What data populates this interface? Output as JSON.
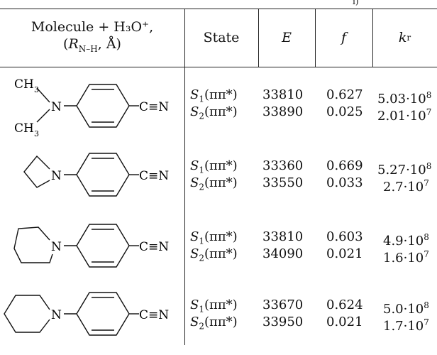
{
  "table": {
    "top_fragment": "i)",
    "headers": {
      "molecule_line1": "Molecule + H₃O⁺,",
      "molecule_line2_open": "(",
      "molecule_line2_R": "R",
      "molecule_line2_sub": "N–H",
      "molecule_line2_rest": ", Å)",
      "state": "State",
      "energy": "E",
      "f": "f",
      "kr": "k",
      "kr_sub": "r"
    },
    "rows": [
      {
        "molecule": "dimethylamino-benzonitrile",
        "substituent_labels": [
          "CH",
          "3",
          "N",
          "CH",
          "3"
        ],
        "nitrile": "C≡N",
        "states": [
          {
            "S": "S",
            "sub": "1",
            "sym": "(ππ*)",
            "E": "33810",
            "f": "0.627",
            "k_base": "5.03·10",
            "k_exp": "8"
          },
          {
            "S": "S",
            "sub": "2",
            "sym": "(ππ*)",
            "E": "33890",
            "f": "0.025",
            "k_base": "2.01·10",
            "k_exp": "7"
          }
        ]
      },
      {
        "molecule": "azetidinyl-benzonitrile",
        "substituent_labels": [
          "N"
        ],
        "nitrile": "C≡N",
        "states": [
          {
            "S": "S",
            "sub": "1",
            "sym": "(ππ*)",
            "E": "33360",
            "f": "0.669",
            "k_base": "5.27·10",
            "k_exp": "8"
          },
          {
            "S": "S",
            "sub": "2",
            "sym": "(ππ*)",
            "E": "33550",
            "f": "0.033",
            "k_base": "2.7·10",
            "k_exp": "7"
          }
        ]
      },
      {
        "molecule": "pyrrolidinyl-benzonitrile",
        "substituent_labels": [
          "N"
        ],
        "nitrile": "C≡N",
        "states": [
          {
            "S": "S",
            "sub": "1",
            "sym": "(ππ*)",
            "E": "33810",
            "f": "0.603",
            "k_base": "4.9·10",
            "k_exp": "8"
          },
          {
            "S": "S",
            "sub": "2",
            "sym": "(ππ*)",
            "E": "34090",
            "f": "0.021",
            "k_base": "1.6·10",
            "k_exp": "7"
          }
        ]
      },
      {
        "molecule": "piperidinyl-benzonitrile",
        "substituent_labels": [
          "N"
        ],
        "nitrile": "C≡N",
        "states": [
          {
            "S": "S",
            "sub": "1",
            "sym": "(ππ*)",
            "E": "33670",
            "f": "0.624",
            "k_base": "5.0·10",
            "k_exp": "8"
          },
          {
            "S": "S",
            "sub": "2",
            "sym": "(ππ*)",
            "E": "33950",
            "f": "0.021",
            "k_base": "1.7·10",
            "k_exp": "7"
          }
        ]
      }
    ]
  }
}
